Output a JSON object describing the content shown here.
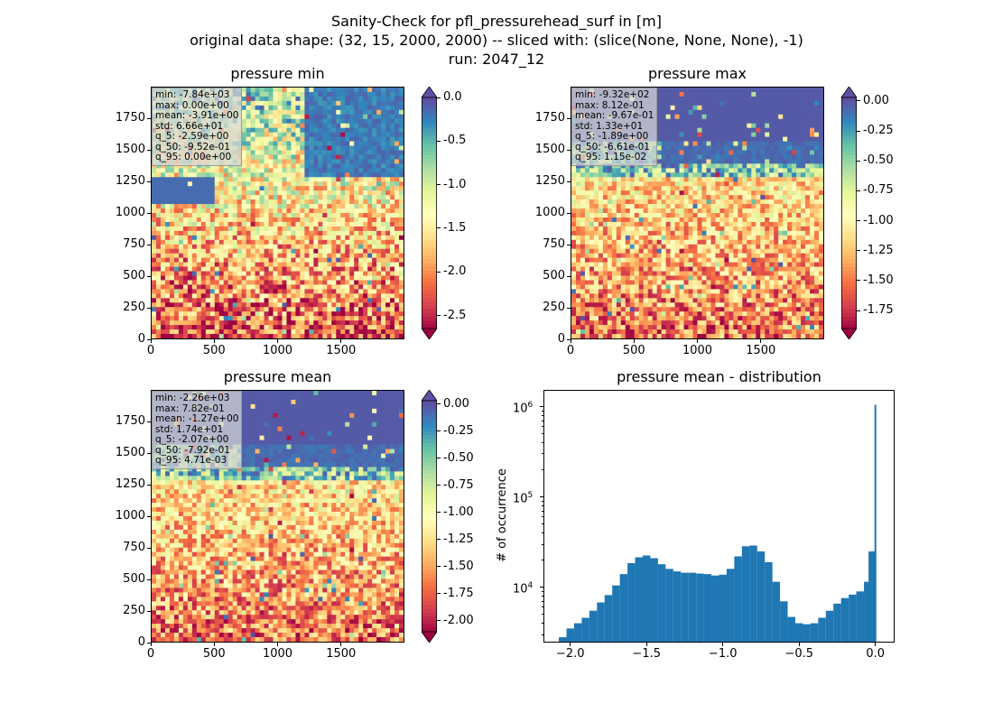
{
  "title_lines": [
    "Sanity-Check for pfl_pressurehead_surf in [m]",
    "original data shape: (32, 15, 2000, 2000) -- sliced with: (slice(None, None, None), -1)",
    "run: 2047_12"
  ],
  "colormap": [
    "#9e0142",
    "#d53e4f",
    "#f46d43",
    "#fdae61",
    "#fee08b",
    "#ffffbf",
    "#e6f598",
    "#abdda4",
    "#66c2a5",
    "#3288bd",
    "#5e4fa2"
  ],
  "chart_data": [
    {
      "type": "heatmap",
      "title": "pressure min",
      "xlim": [
        0,
        2000
      ],
      "ylim": [
        0,
        2000
      ],
      "xticks": [
        0,
        500,
        1000,
        1500
      ],
      "yticks": [
        0,
        250,
        500,
        750,
        1000,
        1250,
        1500,
        1750
      ],
      "colorbar": {
        "vmin": -2.65,
        "vmax": 0.0,
        "ticks": [
          "0.0",
          "-0.5",
          "-1.0",
          "-1.5",
          "-2.0",
          "-2.5"
        ],
        "tick_values": [
          0.0,
          -0.5,
          -1.0,
          -1.5,
          -2.0,
          -2.5
        ],
        "extend": "both"
      },
      "stats": [
        "min: -7.84e+03",
        "max: 0.00e+00",
        "mean: -3.91e+00",
        "std: 6.66e+01",
        "q_5: -2.59e+00",
        "q_50: -9.52e-01",
        "q_95: 0.00e+00"
      ]
    },
    {
      "type": "heatmap",
      "title": "pressure max",
      "xlim": [
        0,
        2000
      ],
      "ylim": [
        0,
        2000
      ],
      "xticks": [
        0,
        500,
        1000,
        1500
      ],
      "yticks": [
        0,
        250,
        500,
        750,
        1000,
        1250,
        1500,
        1750
      ],
      "colorbar": {
        "vmin": -1.9,
        "vmax": 0.03,
        "ticks": [
          "0.00",
          "-0.25",
          "-0.50",
          "-0.75",
          "-1.00",
          "-1.25",
          "-1.50",
          "-1.75"
        ],
        "tick_values": [
          0.0,
          -0.25,
          -0.5,
          -0.75,
          -1.0,
          -1.25,
          -1.5,
          -1.75
        ],
        "extend": "both"
      },
      "stats": [
        "min: -9.32e+02",
        "max: 8.12e-01",
        "mean: -9.67e-01",
        "std: 1.33e+01",
        "q_5: -1.89e+00",
        "q_50: -6.61e-01",
        "q_95: 1.15e-02"
      ]
    },
    {
      "type": "heatmap",
      "title": "pressure mean",
      "xlim": [
        0,
        2000
      ],
      "ylim": [
        0,
        2000
      ],
      "xticks": [
        0,
        500,
        1000,
        1500
      ],
      "yticks": [
        0,
        250,
        500,
        750,
        1000,
        1250,
        1500,
        1750
      ],
      "colorbar": {
        "vmin": -2.1,
        "vmax": 0.03,
        "ticks": [
          "0.00",
          "-0.25",
          "-0.50",
          "-0.75",
          "-1.00",
          "-1.25",
          "-1.50",
          "-1.75",
          "-2.00"
        ],
        "tick_values": [
          0.0,
          -0.25,
          -0.5,
          -0.75,
          -1.0,
          -1.25,
          -1.5,
          -1.75,
          -2.0
        ],
        "extend": "both"
      },
      "stats": [
        "min: -2.26e+03",
        "max: 7.82e-01",
        "mean: -1.27e+00",
        "std: 1.74e+01",
        "q_5: -2.07e+00",
        "q_50: -7.92e-01",
        "q_95: 4.71e-03"
      ]
    },
    {
      "type": "bar",
      "title": "pressure mean - distribution",
      "ylabel": "# of occurrence",
      "yscale": "log",
      "color": "#1f77b4",
      "xlim": [
        -2.17,
        0.12
      ],
      "ylim": [
        2500,
        1500000
      ],
      "xticks": [
        "-2.0",
        "-1.5",
        "-1.0",
        "-0.5",
        "0.0"
      ],
      "xtick_values": [
        -2.0,
        -1.5,
        -1.0,
        -0.5,
        0.0
      ],
      "yticks": [
        "10^4",
        "10^5",
        "10^6"
      ],
      "ytick_values": [
        10000,
        100000,
        1000000
      ],
      "bins": [
        {
          "x": -2.05,
          "y": 2800
        },
        {
          "x": -2.0,
          "y": 3500
        },
        {
          "x": -1.95,
          "y": 4000
        },
        {
          "x": -1.9,
          "y": 4600
        },
        {
          "x": -1.85,
          "y": 5500
        },
        {
          "x": -1.8,
          "y": 6800
        },
        {
          "x": -1.75,
          "y": 8200
        },
        {
          "x": -1.7,
          "y": 10500
        },
        {
          "x": -1.65,
          "y": 14000
        },
        {
          "x": -1.6,
          "y": 18500
        },
        {
          "x": -1.55,
          "y": 21500
        },
        {
          "x": -1.5,
          "y": 22500
        },
        {
          "x": -1.45,
          "y": 21000
        },
        {
          "x": -1.4,
          "y": 18000
        },
        {
          "x": -1.35,
          "y": 16000
        },
        {
          "x": -1.3,
          "y": 15000
        },
        {
          "x": -1.25,
          "y": 14500
        },
        {
          "x": -1.2,
          "y": 14500
        },
        {
          "x": -1.15,
          "y": 14200
        },
        {
          "x": -1.1,
          "y": 14000
        },
        {
          "x": -1.05,
          "y": 13500
        },
        {
          "x": -1.0,
          "y": 13800
        },
        {
          "x": -0.95,
          "y": 16000
        },
        {
          "x": -0.9,
          "y": 22000
        },
        {
          "x": -0.85,
          "y": 28500
        },
        {
          "x": -0.8,
          "y": 29000
        },
        {
          "x": -0.75,
          "y": 25000
        },
        {
          "x": -0.7,
          "y": 19000
        },
        {
          "x": -0.65,
          "y": 11500
        },
        {
          "x": -0.6,
          "y": 7000
        },
        {
          "x": -0.55,
          "y": 4700
        },
        {
          "x": -0.5,
          "y": 4000
        },
        {
          "x": -0.45,
          "y": 3900
        },
        {
          "x": -0.4,
          "y": 4000
        },
        {
          "x": -0.35,
          "y": 4600
        },
        {
          "x": -0.3,
          "y": 5500
        },
        {
          "x": -0.25,
          "y": 6600
        },
        {
          "x": -0.2,
          "y": 7600
        },
        {
          "x": -0.15,
          "y": 8300
        },
        {
          "x": -0.1,
          "y": 9000
        },
        {
          "x": -0.05,
          "y": 11500
        },
        {
          "x": -0.02,
          "y": 25000
        },
        {
          "x": 0.0,
          "y": 1050000
        }
      ]
    }
  ]
}
